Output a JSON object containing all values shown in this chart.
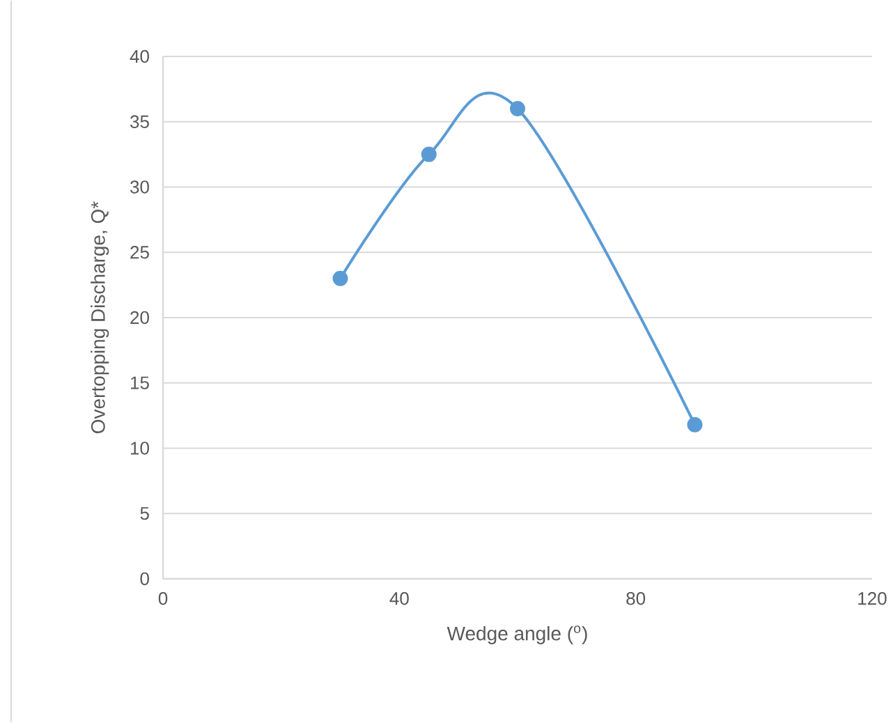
{
  "chart_data": {
    "type": "line",
    "xlabel": "Wedge angle ($^{o}$)",
    "ylabel": "Overtopping Discharge, Q*",
    "x": [
      30,
      45,
      60,
      90
    ],
    "series": [
      {
        "color": "#5b9bd5",
        "values": [
          23,
          32.5,
          36,
          11.8
        ]
      }
    ],
    "xlim": [
      0,
      120
    ],
    "xticks": [
      0,
      40,
      80,
      120
    ],
    "ylim": [
      0,
      40
    ],
    "yticks": [
      0,
      5,
      10,
      15,
      20,
      25,
      30,
      35,
      40
    ],
    "grid": "y",
    "marker": "circle",
    "line_style": "solid"
  }
}
